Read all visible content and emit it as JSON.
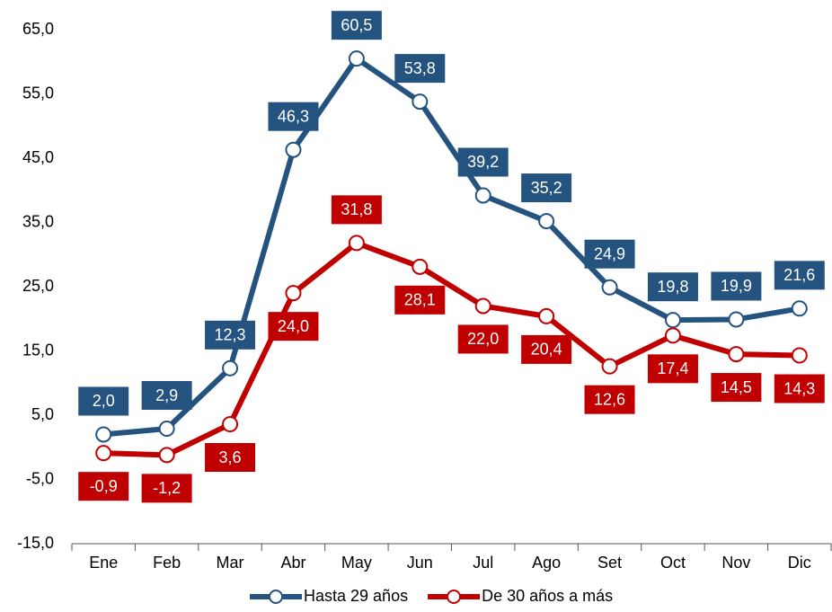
{
  "chart_data": {
    "type": "line",
    "categories": [
      "Ene",
      "Feb",
      "Mar",
      "Abr",
      "May",
      "Jun",
      "Jul",
      "Ago",
      "Set",
      "Oct",
      "Nov",
      "Dic"
    ],
    "series": [
      {
        "name": "Hasta 29 años",
        "color": "#245380",
        "values": [
          2.0,
          2.9,
          12.3,
          46.3,
          60.5,
          53.8,
          39.2,
          35.2,
          24.9,
          19.8,
          19.9,
          21.6
        ],
        "value_labels": [
          "2,0",
          "2,9",
          "12,3",
          "46,3",
          "60,5",
          "53,8",
          "39,2",
          "35,2",
          "24,9",
          "19,8",
          "19,9",
          "21,6"
        ]
      },
      {
        "name": "De 30 años a más",
        "color": "#c00000",
        "values": [
          -0.9,
          -1.2,
          3.6,
          24.0,
          31.8,
          28.1,
          22.0,
          20.4,
          12.6,
          17.4,
          14.5,
          14.3
        ],
        "value_labels": [
          "-0,9",
          "-1,2",
          "3,6",
          "24,0",
          "31,8",
          "28,1",
          "22,0",
          "20,4",
          "12,6",
          "17,4",
          "14,5",
          "14,3"
        ]
      }
    ],
    "ylim": [
      -15,
      65
    ],
    "yticks": [
      {
        "value": -15,
        "label": "-15,0"
      },
      {
        "value": -5,
        "label": "-5,0"
      },
      {
        "value": 5,
        "label": "5,0"
      },
      {
        "value": 15,
        "label": "15,0"
      },
      {
        "value": 25,
        "label": "25,0"
      },
      {
        "value": 35,
        "label": "35,0"
      },
      {
        "value": 45,
        "label": "45,0"
      },
      {
        "value": 55,
        "label": "55,0"
      },
      {
        "value": 65,
        "label": "65,0"
      }
    ],
    "legend": "bottom"
  }
}
